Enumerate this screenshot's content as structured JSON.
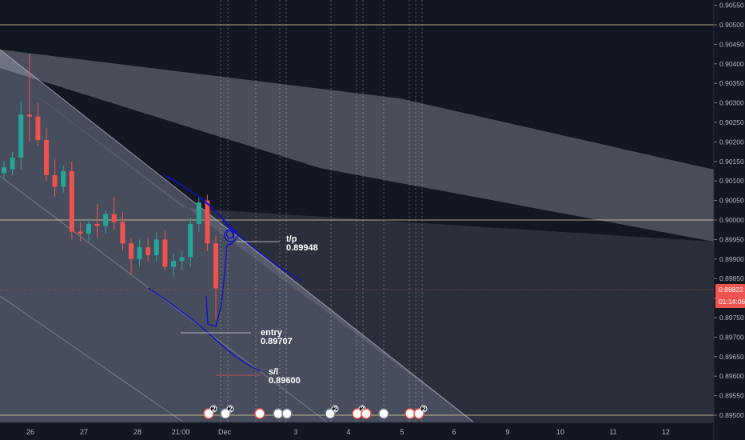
{
  "colors": {
    "background": "#131722",
    "axis_panel": "#131722",
    "channel_fill": "#b8c0d8",
    "up_candle": "#26a69a",
    "down_candle": "#ef5350",
    "drawing": "#1010cc",
    "level_line": "#e6d8a0",
    "price_tag": "#ef5350"
  },
  "price_tag": {
    "price": "0.89822",
    "countdown": "01:14:06"
  },
  "chart_data": {
    "type": "candlestick",
    "title": "",
    "y_ticks": [
      "0.90550",
      "0.90500",
      "0.90450",
      "0.90400",
      "0.90350",
      "0.90300",
      "0.90250",
      "0.90200",
      "0.90150",
      "0.90100",
      "0.90050",
      "0.90000",
      "0.89950",
      "0.89900",
      "0.89850",
      "0.89800",
      "0.89750",
      "0.89700",
      "0.89650",
      "0.89600",
      "0.89550",
      "0.89500"
    ],
    "ylim": [
      0.8948,
      0.9057
    ],
    "x_ticks": [
      "26",
      "27",
      "28",
      "21:00",
      "Dec",
      "3",
      "4",
      "5",
      "6",
      "9",
      "10",
      "11",
      "12"
    ],
    "horizontal_levels": [
      0.905,
      0.9,
      0.895
    ],
    "annotations": [
      {
        "label": "t/p",
        "value": "0.89948"
      },
      {
        "label": "entry",
        "value": "0.89707"
      },
      {
        "label": "s/l",
        "value": "0.89600"
      }
    ],
    "candles": [
      {
        "o": 0.9012,
        "h": 0.9015,
        "l": 0.90105,
        "c": 0.90135
      },
      {
        "o": 0.9013,
        "h": 0.90175,
        "l": 0.90115,
        "c": 0.9016
      },
      {
        "o": 0.9016,
        "h": 0.90305,
        "l": 0.9013,
        "c": 0.9027
      },
      {
        "o": 0.9027,
        "h": 0.90425,
        "l": 0.902,
        "c": 0.90265
      },
      {
        "o": 0.90265,
        "h": 0.903,
        "l": 0.9019,
        "c": 0.90205
      },
      {
        "o": 0.90205,
        "h": 0.90235,
        "l": 0.901,
        "c": 0.90115
      },
      {
        "o": 0.90115,
        "h": 0.90155,
        "l": 0.9006,
        "c": 0.90085
      },
      {
        "o": 0.90085,
        "h": 0.9014,
        "l": 0.9007,
        "c": 0.90125
      },
      {
        "o": 0.90125,
        "h": 0.9015,
        "l": 0.8995,
        "c": 0.8997
      },
      {
        "o": 0.8997,
        "h": 0.89995,
        "l": 0.89945,
        "c": 0.89965
      },
      {
        "o": 0.89965,
        "h": 0.90005,
        "l": 0.89945,
        "c": 0.8999
      },
      {
        "o": 0.8999,
        "h": 0.9004,
        "l": 0.89955,
        "c": 0.89985
      },
      {
        "o": 0.89985,
        "h": 0.90025,
        "l": 0.89965,
        "c": 0.90015
      },
      {
        "o": 0.90015,
        "h": 0.9006,
        "l": 0.89975,
        "c": 0.89995
      },
      {
        "o": 0.89995,
        "h": 0.9002,
        "l": 0.8992,
        "c": 0.8994
      },
      {
        "o": 0.8994,
        "h": 0.89955,
        "l": 0.8986,
        "c": 0.899
      },
      {
        "o": 0.899,
        "h": 0.8995,
        "l": 0.8988,
        "c": 0.8993
      },
      {
        "o": 0.8993,
        "h": 0.89955,
        "l": 0.89895,
        "c": 0.8991
      },
      {
        "o": 0.8991,
        "h": 0.8997,
        "l": 0.89895,
        "c": 0.8995
      },
      {
        "o": 0.8995,
        "h": 0.89975,
        "l": 0.8987,
        "c": 0.8988
      },
      {
        "o": 0.8988,
        "h": 0.89915,
        "l": 0.89855,
        "c": 0.89895
      },
      {
        "o": 0.89895,
        "h": 0.8992,
        "l": 0.8987,
        "c": 0.89905
      },
      {
        "o": 0.89905,
        "h": 0.90005,
        "l": 0.8988,
        "c": 0.8999
      },
      {
        "o": 0.8999,
        "h": 0.9006,
        "l": 0.8997,
        "c": 0.90045
      },
      {
        "o": 0.9005,
        "h": 0.90065,
        "l": 0.8992,
        "c": 0.8994
      },
      {
        "o": 0.8994,
        "h": 0.8996,
        "l": 0.89745,
        "c": 0.89825
      }
    ]
  }
}
